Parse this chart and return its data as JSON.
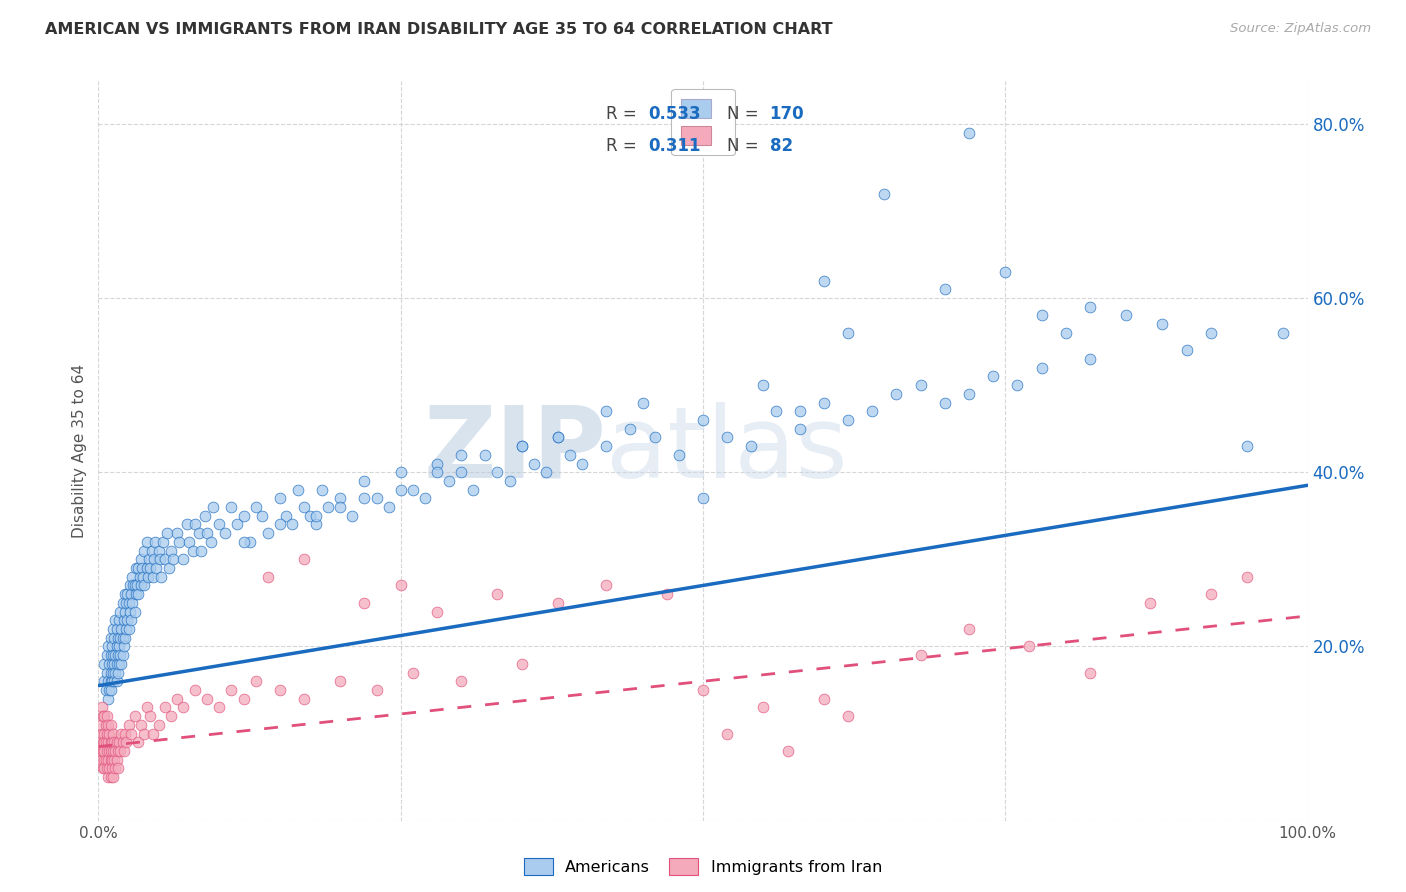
{
  "title": "AMERICAN VS IMMIGRANTS FROM IRAN DISABILITY AGE 35 TO 64 CORRELATION CHART",
  "source": "Source: ZipAtlas.com",
  "ylabel": "Disability Age 35 to 64",
  "xlim": [
    0.0,
    1.0
  ],
  "ylim": [
    0.0,
    0.85
  ],
  "x_ticks": [
    0.0,
    0.25,
    0.5,
    0.75,
    1.0
  ],
  "x_tick_labels": [
    "0.0%",
    "",
    "",
    "",
    "100.0%"
  ],
  "y_ticks": [
    0.0,
    0.2,
    0.4,
    0.6,
    0.8
  ],
  "y_tick_labels": [
    "",
    "20.0%",
    "40.0%",
    "60.0%",
    "80.0%"
  ],
  "blue_color": "#aaccee",
  "pink_color": "#f4aabb",
  "blue_line_color": "#1a6bbf",
  "pink_line_color": "#e0507a",
  "R_blue": "0.533",
  "N_blue": "170",
  "R_pink": "0.311",
  "N_pink": "82",
  "watermark_zip": "ZIP",
  "watermark_atlas": "atlas",
  "background_color": "#ffffff",
  "grid_color": "#cccccc",
  "blue_scatter_x": [
    0.005,
    0.005,
    0.006,
    0.007,
    0.007,
    0.008,
    0.008,
    0.008,
    0.009,
    0.009,
    0.01,
    0.01,
    0.01,
    0.01,
    0.01,
    0.011,
    0.011,
    0.011,
    0.012,
    0.012,
    0.012,
    0.013,
    0.013,
    0.013,
    0.014,
    0.014,
    0.014,
    0.015,
    0.015,
    0.015,
    0.015,
    0.016,
    0.016,
    0.016,
    0.017,
    0.017,
    0.017,
    0.018,
    0.018,
    0.018,
    0.019,
    0.019,
    0.02,
    0.02,
    0.02,
    0.021,
    0.021,
    0.022,
    0.022,
    0.022,
    0.023,
    0.023,
    0.024,
    0.024,
    0.025,
    0.025,
    0.026,
    0.026,
    0.027,
    0.027,
    0.028,
    0.028,
    0.029,
    0.03,
    0.03,
    0.031,
    0.031,
    0.032,
    0.033,
    0.033,
    0.034,
    0.035,
    0.035,
    0.036,
    0.037,
    0.038,
    0.038,
    0.04,
    0.04,
    0.041,
    0.042,
    0.043,
    0.044,
    0.045,
    0.046,
    0.047,
    0.048,
    0.05,
    0.051,
    0.052,
    0.053,
    0.055,
    0.057,
    0.058,
    0.06,
    0.062,
    0.065,
    0.067,
    0.07,
    0.073,
    0.075,
    0.078,
    0.08,
    0.083,
    0.085,
    0.088,
    0.09,
    0.093,
    0.095,
    0.1,
    0.105,
    0.11,
    0.115,
    0.12,
    0.125,
    0.13,
    0.135,
    0.14,
    0.15,
    0.155,
    0.16,
    0.165,
    0.17,
    0.175,
    0.18,
    0.185,
    0.19,
    0.2,
    0.21,
    0.22,
    0.23,
    0.24,
    0.25,
    0.26,
    0.27,
    0.28,
    0.29,
    0.3,
    0.31,
    0.32,
    0.33,
    0.34,
    0.35,
    0.36,
    0.37,
    0.38,
    0.39,
    0.4,
    0.42,
    0.44,
    0.46,
    0.48,
    0.5,
    0.52,
    0.54,
    0.56,
    0.58,
    0.6,
    0.62,
    0.64,
    0.66,
    0.68,
    0.7,
    0.72,
    0.74,
    0.76,
    0.78,
    0.82
  ],
  "blue_scatter_y": [
    0.16,
    0.18,
    0.15,
    0.17,
    0.19,
    0.14,
    0.16,
    0.2,
    0.15,
    0.18,
    0.16,
    0.17,
    0.19,
    0.15,
    0.21,
    0.16,
    0.18,
    0.2,
    0.17,
    0.19,
    0.22,
    0.16,
    0.18,
    0.21,
    0.17,
    0.19,
    0.23,
    0.16,
    0.18,
    0.2,
    0.22,
    0.17,
    0.19,
    0.21,
    0.18,
    0.2,
    0.23,
    0.19,
    0.21,
    0.24,
    0.18,
    0.22,
    0.19,
    0.21,
    0.25,
    0.2,
    0.23,
    0.21,
    0.24,
    0.26,
    0.22,
    0.25,
    0.23,
    0.26,
    0.22,
    0.25,
    0.24,
    0.27,
    0.23,
    0.26,
    0.25,
    0.28,
    0.27,
    0.24,
    0.27,
    0.26,
    0.29,
    0.27,
    0.26,
    0.29,
    0.28,
    0.27,
    0.3,
    0.29,
    0.28,
    0.31,
    0.27,
    0.29,
    0.32,
    0.28,
    0.3,
    0.29,
    0.31,
    0.28,
    0.3,
    0.32,
    0.29,
    0.31,
    0.3,
    0.28,
    0.32,
    0.3,
    0.33,
    0.29,
    0.31,
    0.3,
    0.33,
    0.32,
    0.3,
    0.34,
    0.32,
    0.31,
    0.34,
    0.33,
    0.31,
    0.35,
    0.33,
    0.32,
    0.36,
    0.34,
    0.33,
    0.36,
    0.34,
    0.35,
    0.32,
    0.36,
    0.35,
    0.33,
    0.37,
    0.35,
    0.34,
    0.38,
    0.36,
    0.35,
    0.34,
    0.38,
    0.36,
    0.37,
    0.35,
    0.39,
    0.37,
    0.36,
    0.4,
    0.38,
    0.37,
    0.41,
    0.39,
    0.4,
    0.38,
    0.42,
    0.4,
    0.39,
    0.43,
    0.41,
    0.4,
    0.44,
    0.42,
    0.41,
    0.43,
    0.45,
    0.44,
    0.42,
    0.46,
    0.44,
    0.43,
    0.47,
    0.45,
    0.48,
    0.46,
    0.47,
    0.49,
    0.5,
    0.48,
    0.49,
    0.51,
    0.5,
    0.52,
    0.53
  ],
  "blue_outlier_x": [
    0.6,
    0.65,
    0.7,
    0.72,
    0.75,
    0.78,
    0.8,
    0.82,
    0.85,
    0.88,
    0.9,
    0.92,
    0.95,
    0.98,
    0.5,
    0.55,
    0.58,
    0.62,
    0.45,
    0.42,
    0.38,
    0.35,
    0.3,
    0.28,
    0.25,
    0.22,
    0.2,
    0.18,
    0.15,
    0.12
  ],
  "blue_outlier_y": [
    0.62,
    0.72,
    0.61,
    0.79,
    0.63,
    0.58,
    0.56,
    0.59,
    0.58,
    0.57,
    0.54,
    0.56,
    0.43,
    0.56,
    0.37,
    0.5,
    0.47,
    0.56,
    0.48,
    0.47,
    0.44,
    0.43,
    0.42,
    0.4,
    0.38,
    0.37,
    0.36,
    0.35,
    0.34,
    0.32
  ],
  "pink_scatter_x": [
    0.002,
    0.002,
    0.003,
    0.003,
    0.003,
    0.004,
    0.004,
    0.004,
    0.004,
    0.005,
    0.005,
    0.005,
    0.005,
    0.005,
    0.005,
    0.006,
    0.006,
    0.006,
    0.007,
    0.007,
    0.007,
    0.007,
    0.008,
    0.008,
    0.008,
    0.008,
    0.009,
    0.009,
    0.009,
    0.01,
    0.01,
    0.01,
    0.01,
    0.01,
    0.011,
    0.011,
    0.011,
    0.012,
    0.012,
    0.012,
    0.013,
    0.013,
    0.014,
    0.014,
    0.015,
    0.015,
    0.016,
    0.016,
    0.017,
    0.018,
    0.019,
    0.02,
    0.021,
    0.022,
    0.023,
    0.025,
    0.027,
    0.03,
    0.033,
    0.035,
    0.038,
    0.04,
    0.043,
    0.045,
    0.05,
    0.055,
    0.06,
    0.065,
    0.07,
    0.08,
    0.09,
    0.1,
    0.11,
    0.12,
    0.13,
    0.15,
    0.17,
    0.2,
    0.23,
    0.26,
    0.3,
    0.35
  ],
  "pink_scatter_y": [
    0.11,
    0.08,
    0.1,
    0.13,
    0.07,
    0.09,
    0.12,
    0.06,
    0.08,
    0.1,
    0.07,
    0.09,
    0.12,
    0.06,
    0.08,
    0.09,
    0.11,
    0.07,
    0.08,
    0.1,
    0.12,
    0.06,
    0.07,
    0.09,
    0.11,
    0.05,
    0.08,
    0.1,
    0.06,
    0.07,
    0.09,
    0.11,
    0.05,
    0.08,
    0.07,
    0.09,
    0.06,
    0.08,
    0.1,
    0.05,
    0.07,
    0.09,
    0.08,
    0.06,
    0.07,
    0.09,
    0.08,
    0.06,
    0.09,
    0.08,
    0.1,
    0.09,
    0.08,
    0.1,
    0.09,
    0.11,
    0.1,
    0.12,
    0.09,
    0.11,
    0.1,
    0.13,
    0.12,
    0.1,
    0.11,
    0.13,
    0.12,
    0.14,
    0.13,
    0.15,
    0.14,
    0.13,
    0.15,
    0.14,
    0.16,
    0.15,
    0.14,
    0.16,
    0.15,
    0.17,
    0.16,
    0.18
  ],
  "pink_outlier_x": [
    0.14,
    0.17,
    0.22,
    0.25,
    0.28,
    0.33,
    0.38,
    0.42,
    0.47,
    0.52,
    0.57,
    0.62,
    0.68,
    0.72,
    0.77,
    0.82,
    0.87,
    0.92,
    0.95,
    0.5,
    0.55,
    0.6
  ],
  "pink_outlier_y": [
    0.28,
    0.3,
    0.25,
    0.27,
    0.24,
    0.26,
    0.25,
    0.27,
    0.26,
    0.1,
    0.08,
    0.12,
    0.19,
    0.22,
    0.2,
    0.17,
    0.25,
    0.26,
    0.28,
    0.15,
    0.13,
    0.14
  ],
  "blue_line_x0": 0.0,
  "blue_line_y0": 0.155,
  "blue_line_x1": 1.0,
  "blue_line_y1": 0.385,
  "pink_line_x0": 0.0,
  "pink_line_y0": 0.085,
  "pink_line_x1": 1.0,
  "pink_line_y1": 0.235
}
